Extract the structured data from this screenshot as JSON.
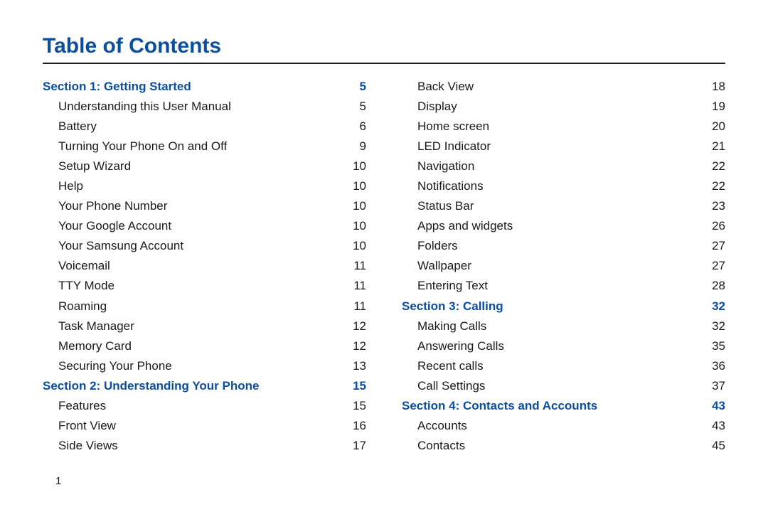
{
  "title": "Table of Contents",
  "page_number": "1",
  "colors": {
    "heading": "#0b4ea0",
    "rule": "#202020",
    "text": "#1a1a1a",
    "background": "#ffffff"
  },
  "typography": {
    "title_fontsize": 30,
    "row_fontsize": 17,
    "line_height": 1.65
  },
  "columns": [
    [
      {
        "type": "section",
        "label": "Section 1:  Getting Started",
        "page": "5"
      },
      {
        "type": "entry",
        "label": "Understanding this User Manual",
        "page": "5"
      },
      {
        "type": "entry",
        "label": "Battery",
        "page": "6"
      },
      {
        "type": "entry",
        "label": "Turning Your Phone On and Off",
        "page": "9"
      },
      {
        "type": "entry",
        "label": "Setup Wizard",
        "page": "10"
      },
      {
        "type": "entry",
        "label": "Help",
        "page": "10"
      },
      {
        "type": "entry",
        "label": "Your Phone Number",
        "page": "10"
      },
      {
        "type": "entry",
        "label": "Your Google Account",
        "page": "10"
      },
      {
        "type": "entry",
        "label": "Your Samsung Account",
        "page": "10"
      },
      {
        "type": "entry",
        "label": "Voicemail",
        "page": "11"
      },
      {
        "type": "entry",
        "label": "TTY Mode",
        "page": "11"
      },
      {
        "type": "entry",
        "label": "Roaming",
        "page": "11"
      },
      {
        "type": "entry",
        "label": "Task Manager",
        "page": "12"
      },
      {
        "type": "entry",
        "label": "Memory Card",
        "page": "12"
      },
      {
        "type": "entry",
        "label": "Securing Your Phone",
        "page": "13"
      },
      {
        "type": "section",
        "label": "Section 2:  Understanding Your Phone",
        "page": "15"
      },
      {
        "type": "entry",
        "label": "Features",
        "page": "15"
      },
      {
        "type": "entry",
        "label": "Front View",
        "page": "16"
      },
      {
        "type": "entry",
        "label": "Side Views",
        "page": "17"
      }
    ],
    [
      {
        "type": "entry",
        "label": "Back View",
        "page": "18"
      },
      {
        "type": "entry",
        "label": "Display",
        "page": "19"
      },
      {
        "type": "entry",
        "label": "Home screen",
        "page": "20"
      },
      {
        "type": "entry",
        "label": "LED Indicator",
        "page": "21"
      },
      {
        "type": "entry",
        "label": "Navigation",
        "page": "22"
      },
      {
        "type": "entry",
        "label": "Notifications",
        "page": "22"
      },
      {
        "type": "entry",
        "label": "Status Bar",
        "page": "23"
      },
      {
        "type": "entry",
        "label": "Apps and widgets",
        "page": "26"
      },
      {
        "type": "entry",
        "label": "Folders",
        "page": "27"
      },
      {
        "type": "entry",
        "label": "Wallpaper",
        "page": "27"
      },
      {
        "type": "entry",
        "label": "Entering Text",
        "page": "28"
      },
      {
        "type": "section",
        "label": "Section 3:  Calling",
        "page": "32"
      },
      {
        "type": "entry",
        "label": "Making Calls",
        "page": "32"
      },
      {
        "type": "entry",
        "label": "Answering Calls",
        "page": "35"
      },
      {
        "type": "entry",
        "label": "Recent calls",
        "page": "36"
      },
      {
        "type": "entry",
        "label": "Call Settings",
        "page": "37"
      },
      {
        "type": "section",
        "label": "Section 4:  Contacts and Accounts",
        "page": "43"
      },
      {
        "type": "entry",
        "label": "Accounts",
        "page": "43"
      },
      {
        "type": "entry",
        "label": "Contacts",
        "page": "45"
      }
    ]
  ]
}
